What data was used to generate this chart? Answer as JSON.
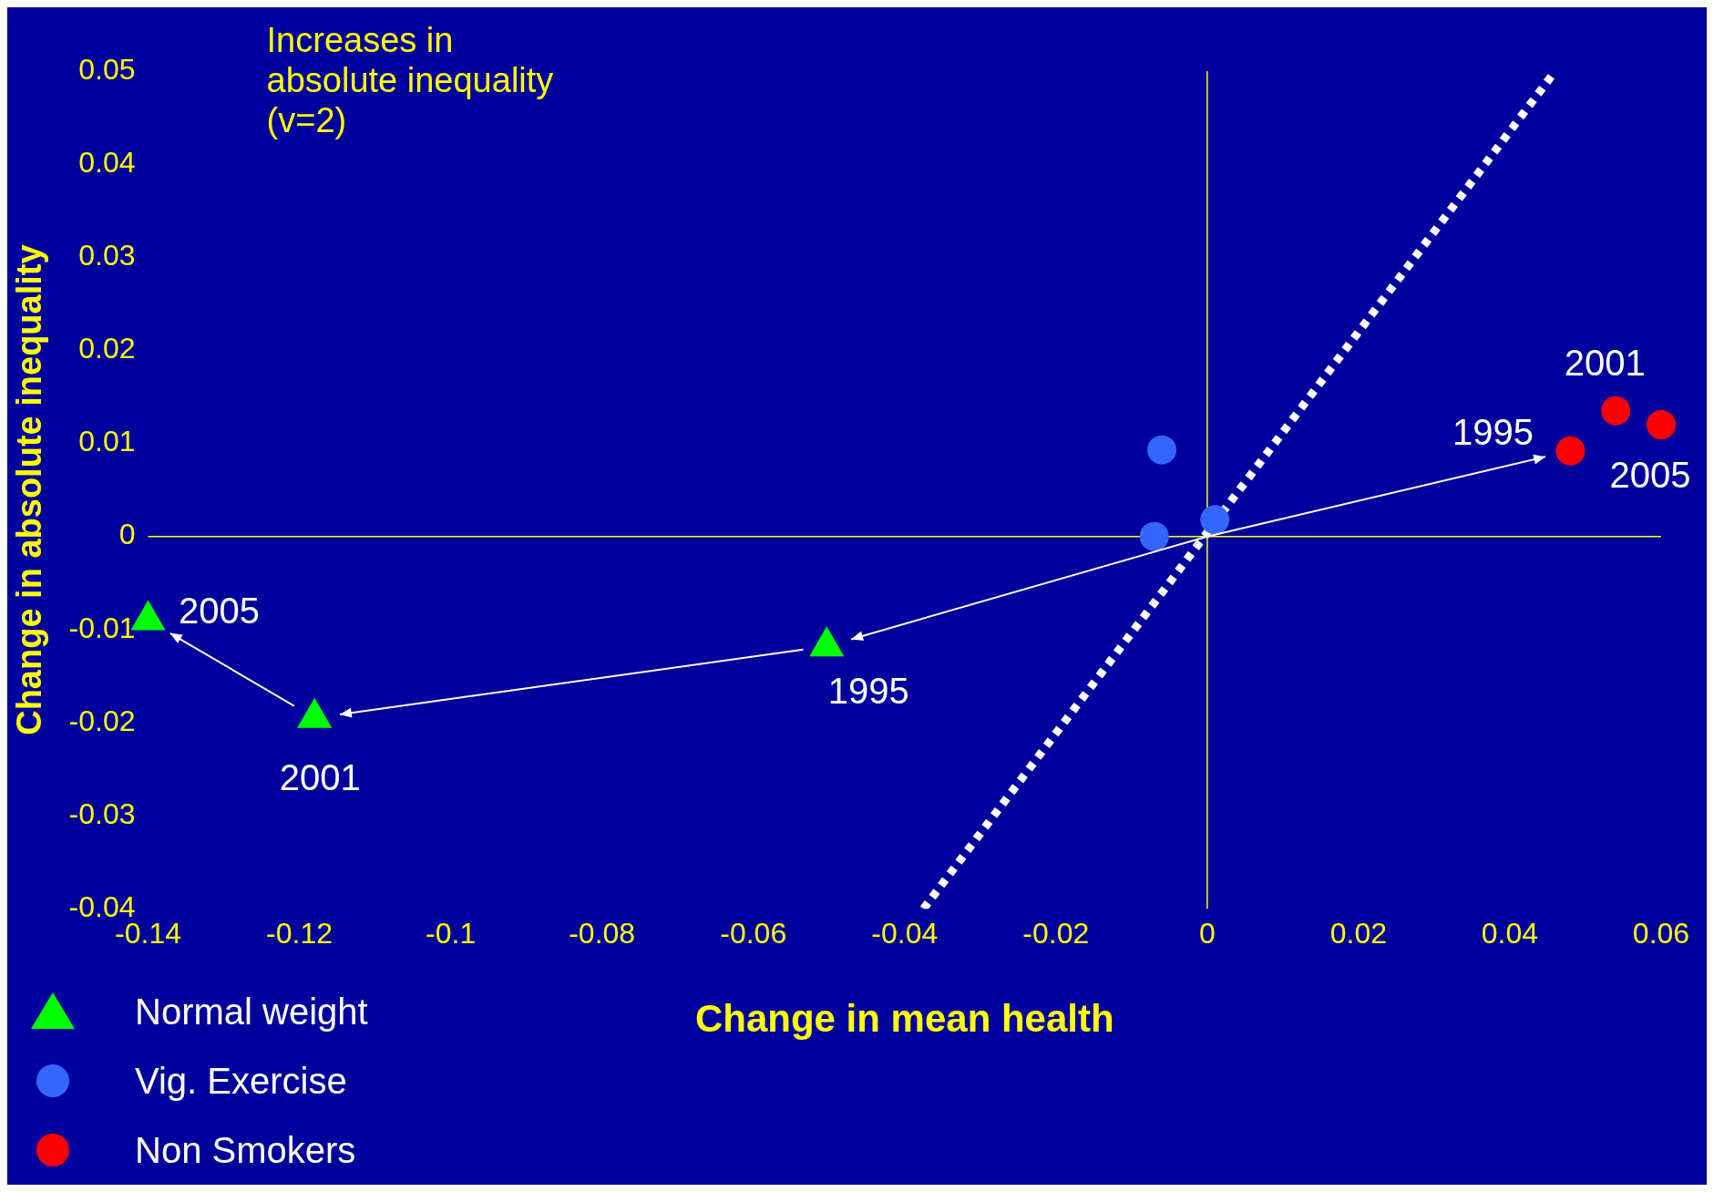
{
  "chart_data": {
    "type": "scatter",
    "xlabel": "Change in mean health",
    "ylabel": "Change in absolute inequality",
    "xlim": [
      -0.14,
      0.06
    ],
    "xticks": [
      -0.14,
      -0.12,
      -0.1,
      -0.08,
      -0.06,
      -0.04,
      -0.02,
      0,
      0.02,
      0.04,
      0.06
    ],
    "ylim": [
      -0.04,
      0.05
    ],
    "yticks": [
      -0.04,
      -0.03,
      -0.02,
      -0.01,
      0,
      0.01,
      0.02,
      0.03,
      0.04,
      0.05
    ],
    "legend": "bottom left",
    "series": [
      {
        "name": "Normal weight",
        "color": "#00ff00",
        "marker": "triangle",
        "x": [
          -0.0503,
          -0.118,
          -0.14
        ],
        "values": [
          -0.0118,
          -0.0195,
          -0.009
        ]
      },
      {
        "name": "Vig. Exercise",
        "color": "#3366ff",
        "marker": "circle",
        "x": [
          -0.006,
          -0.007,
          0.001
        ],
        "values": [
          0.0093,
          0,
          0.0018
        ]
      },
      {
        "name": "Non Smokers",
        "color": "#ff0000",
        "marker": "circle",
        "x": [
          0.048,
          0.054,
          0.06
        ],
        "values": [
          0.0092,
          0.0135,
          0.012
        ]
      },
      {
        "type": "line",
        "color": "#ffffff",
        "line_style": "dotted",
        "marker": "none",
        "x": [
          -0.0375,
          0.046
        ],
        "values": [
          -0.04,
          0.05
        ]
      }
    ],
    "annotations": [
      "Increases in absolute inequality (v=2)",
      "2005",
      "2001",
      "1995",
      {
        "text": "1995",
        "x": 0.048,
        "y": 0.0092
      },
      {
        "text": "2001",
        "x": 0.054,
        "y": 0.0135
      },
      {
        "text": "2005",
        "x": 0.06,
        "y": 0.012
      }
    ]
  }
}
